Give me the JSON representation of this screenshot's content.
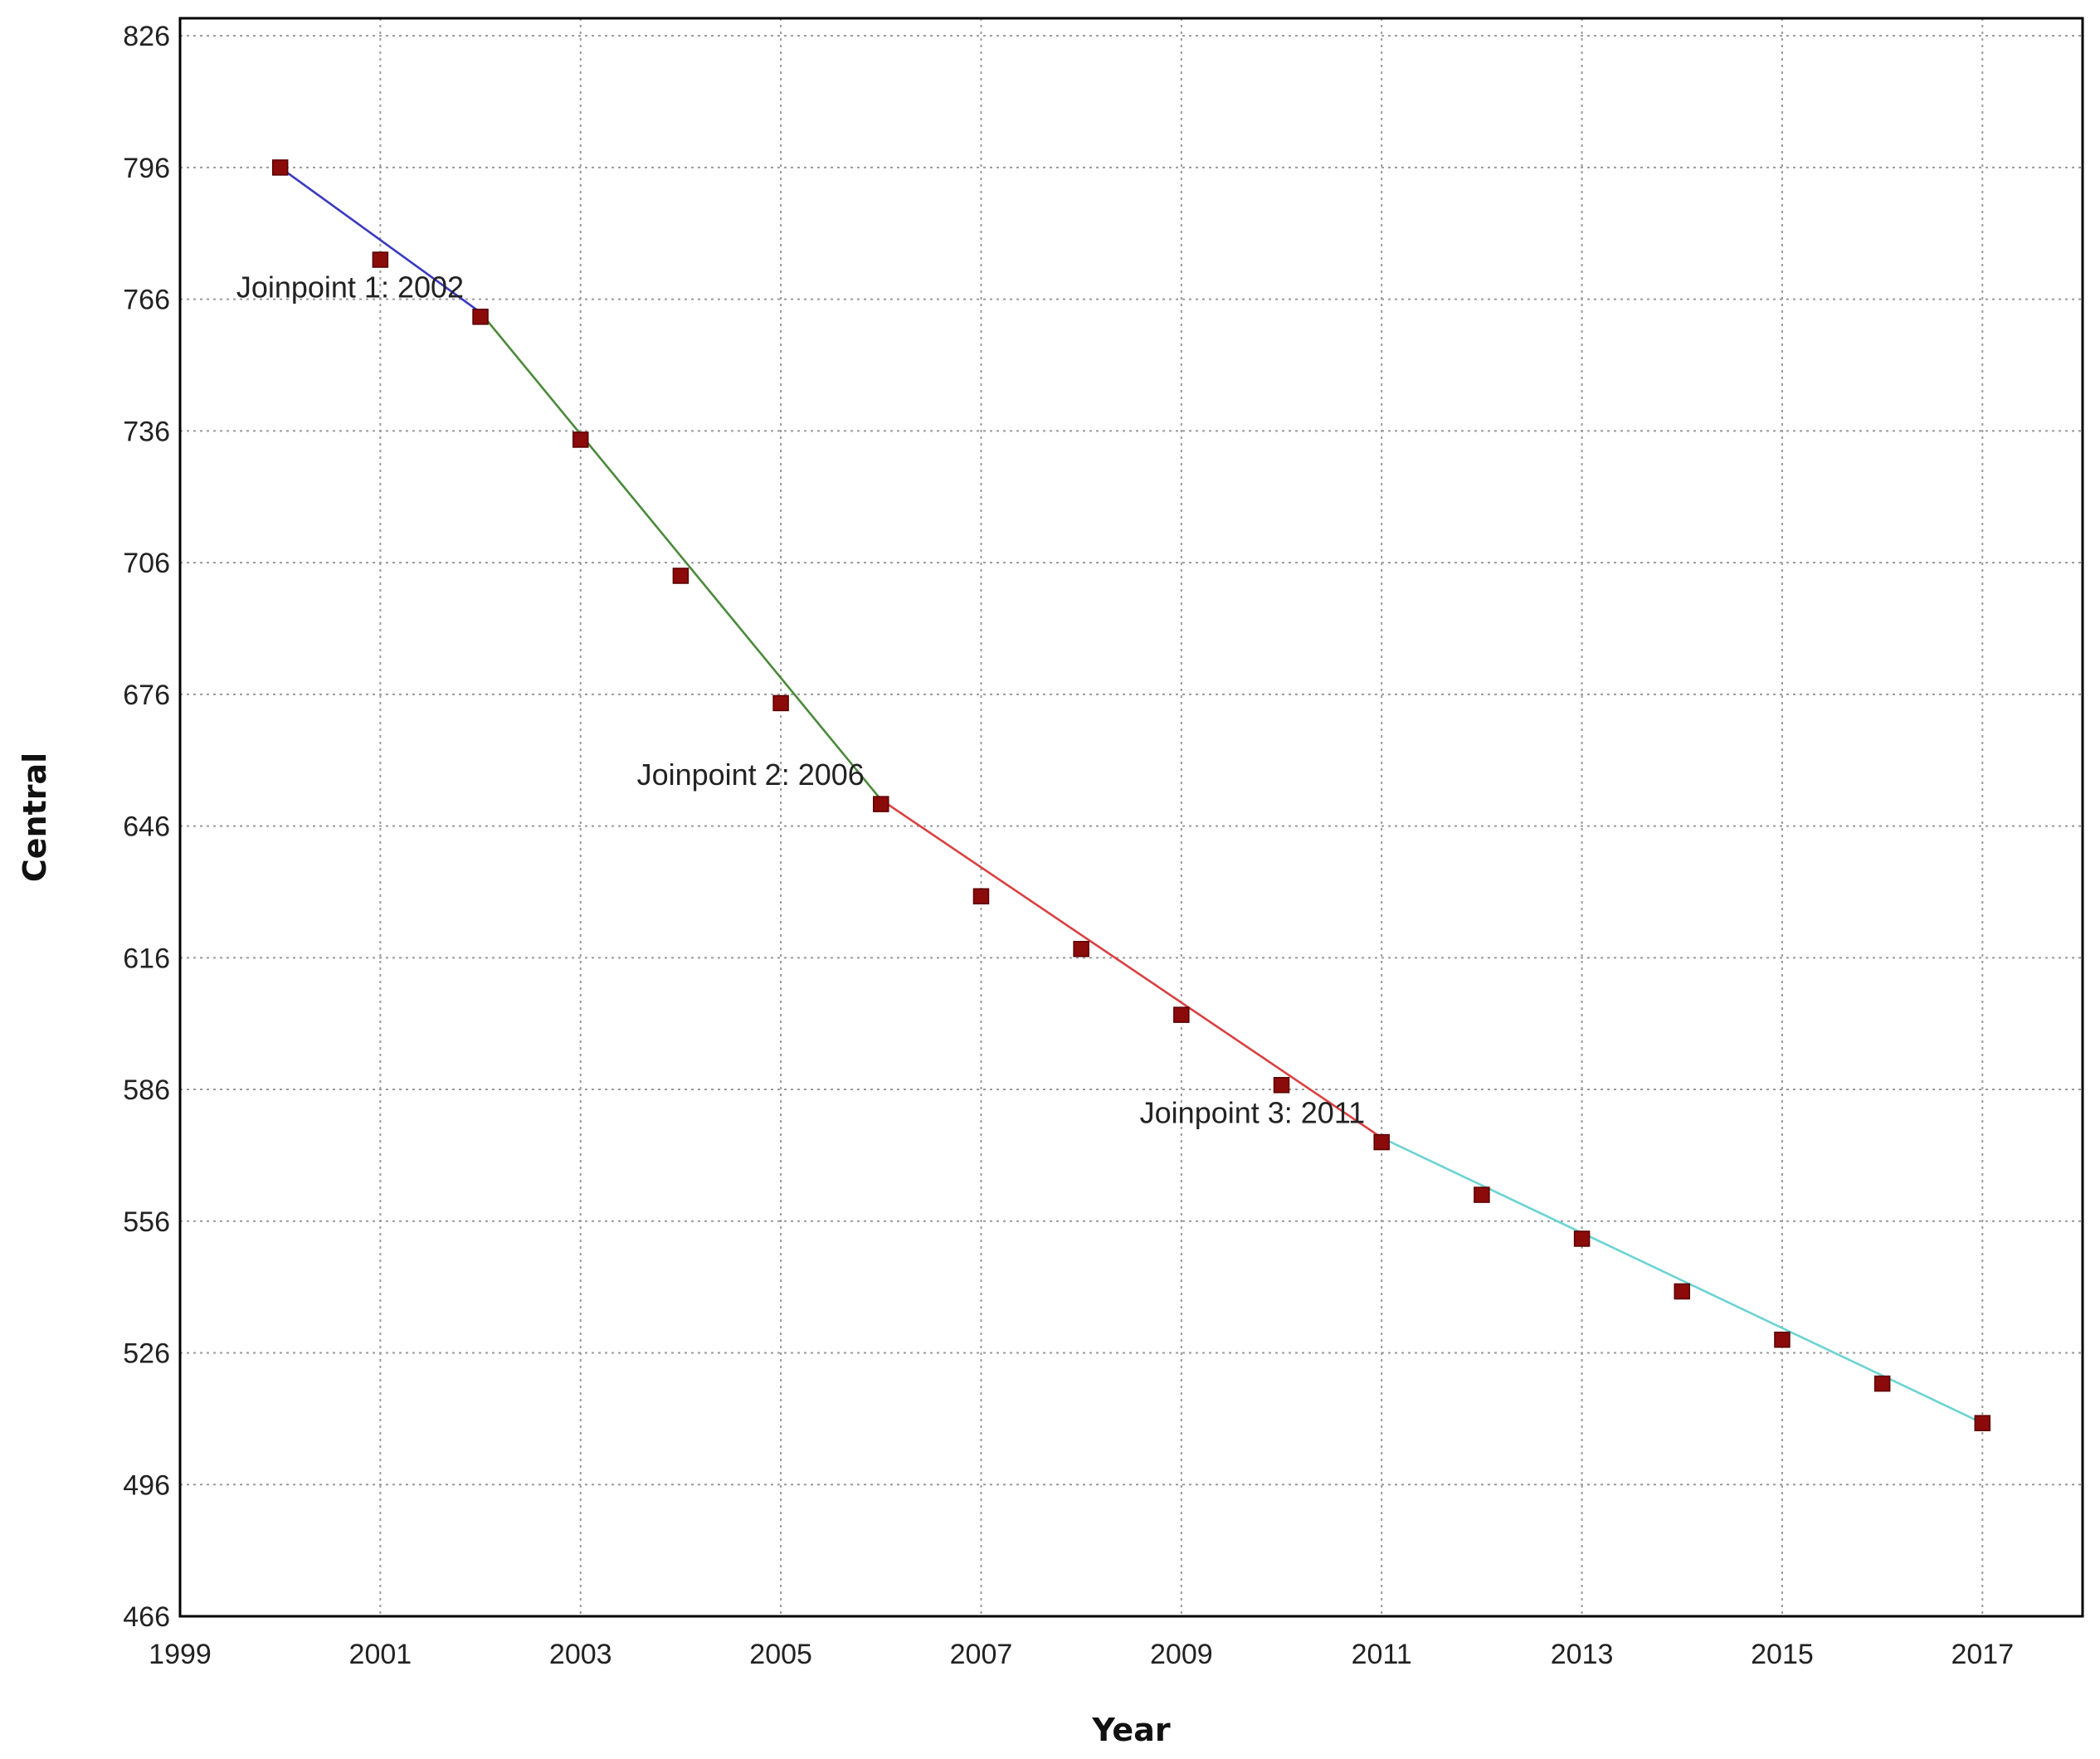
{
  "chart_data": {
    "type": "line",
    "title": "",
    "xlabel": "Year",
    "ylabel": "Central",
    "xlim": [
      1999,
      2018
    ],
    "ylim": [
      466,
      830
    ],
    "x_ticks": [
      1999,
      2001,
      2003,
      2005,
      2007,
      2009,
      2011,
      2013,
      2015,
      2017
    ],
    "y_ticks": [
      466,
      496,
      526,
      556,
      586,
      616,
      646,
      676,
      706,
      736,
      766,
      796,
      826
    ],
    "grid": true,
    "legend": "none",
    "marker_color": "#8b0a0a",
    "observed": {
      "x": [
        2000,
        2001,
        2002,
        2003,
        2004,
        2005,
        2006,
        2007,
        2008,
        2009,
        2010,
        2011,
        2012,
        2013,
        2014,
        2015,
        2016,
        2017
      ],
      "y": [
        796,
        775,
        762,
        734,
        703,
        674,
        651,
        630,
        618,
        603,
        587,
        574,
        562,
        552,
        540,
        529,
        519,
        510
      ]
    },
    "segments": [
      {
        "x": [
          2000,
          2002
        ],
        "y": [
          796,
          763
        ],
        "color": "#3a3ac0"
      },
      {
        "x": [
          2002,
          2006
        ],
        "y": [
          763,
          652
        ],
        "color": "#4a8a3a"
      },
      {
        "x": [
          2006,
          2011
        ],
        "y": [
          652,
          575
        ],
        "color": "#d94040"
      },
      {
        "x": [
          2011,
          2017
        ],
        "y": [
          575,
          510
        ],
        "color": "#6cd3d3"
      }
    ],
    "annotations": [
      {
        "text": "Joinpoint 1:  2002",
        "x": 2002,
        "y": 763
      },
      {
        "text": "Joinpoint 2:  2006",
        "x": 2006,
        "y": 652
      },
      {
        "text": "Joinpoint 3:  2011",
        "x": 2011,
        "y": 575
      }
    ]
  }
}
